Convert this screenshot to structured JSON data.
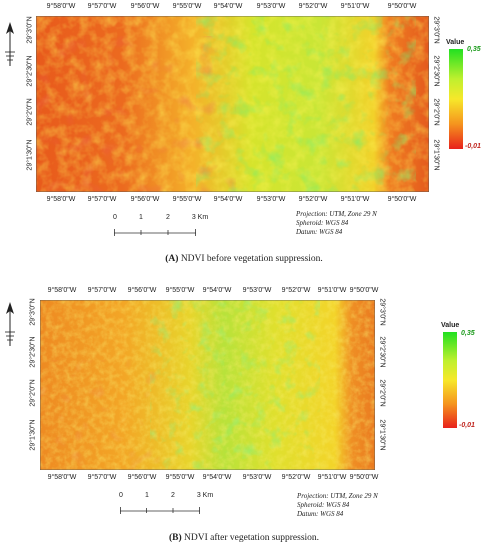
{
  "panels": [
    {
      "id": "A",
      "longitudes": [
        "9°58'0\"W",
        "9°57'0\"W",
        "9°56'0\"W",
        "9°55'0\"W",
        "9°54'0\"W",
        "9°53'0\"W",
        "9°52'0\"W",
        "9°51'0\"W",
        "9°50'0\"W"
      ],
      "latitudes": [
        "29°3'0\"N",
        "29°2'30\"N",
        "29°2'0\"N",
        "29°1'30\"N"
      ],
      "legend": {
        "title": "Value",
        "max": "0,35",
        "min": "-0,01"
      },
      "scale": {
        "ticks": [
          "0",
          "1",
          "2",
          "3 Km"
        ]
      },
      "projection": [
        "Projection: UTM, Zone 29 N",
        "Spheroid: WGS 84",
        "Datum: WGS 84"
      ],
      "caption_letter": "(A)",
      "caption_text": " NDVI before vegetation suppression."
    },
    {
      "id": "B",
      "longitudes": [
        "9°58'0\"W",
        "9°57'0\"W",
        "9°56'0\"W",
        "9°55'0\"W",
        "9°54'0\"W",
        "9°53'0\"W",
        "9°52'0\"W",
        "9°51'0\"W",
        "9°50'0\"W"
      ],
      "latitudes": [
        "29°3'0\"N",
        "29°2'30\"N",
        "29°2'0\"N",
        "29°1'30\"N"
      ],
      "legend": {
        "title": "Value",
        "max": "0,35",
        "min": "-0,01"
      },
      "scale": {
        "ticks": [
          "0",
          "1",
          "2",
          "3 Km"
        ]
      },
      "projection": [
        "Projection: UTM, Zone 29 N",
        "Spheroid: WGS 84",
        "Datum: WGS 84"
      ],
      "caption_letter": "(B)",
      "caption_text": " NDVI after vegetation suppression."
    }
  ],
  "colors": {
    "high": "#21e021",
    "mid": "#f7e82a",
    "low": "#e8221c"
  }
}
